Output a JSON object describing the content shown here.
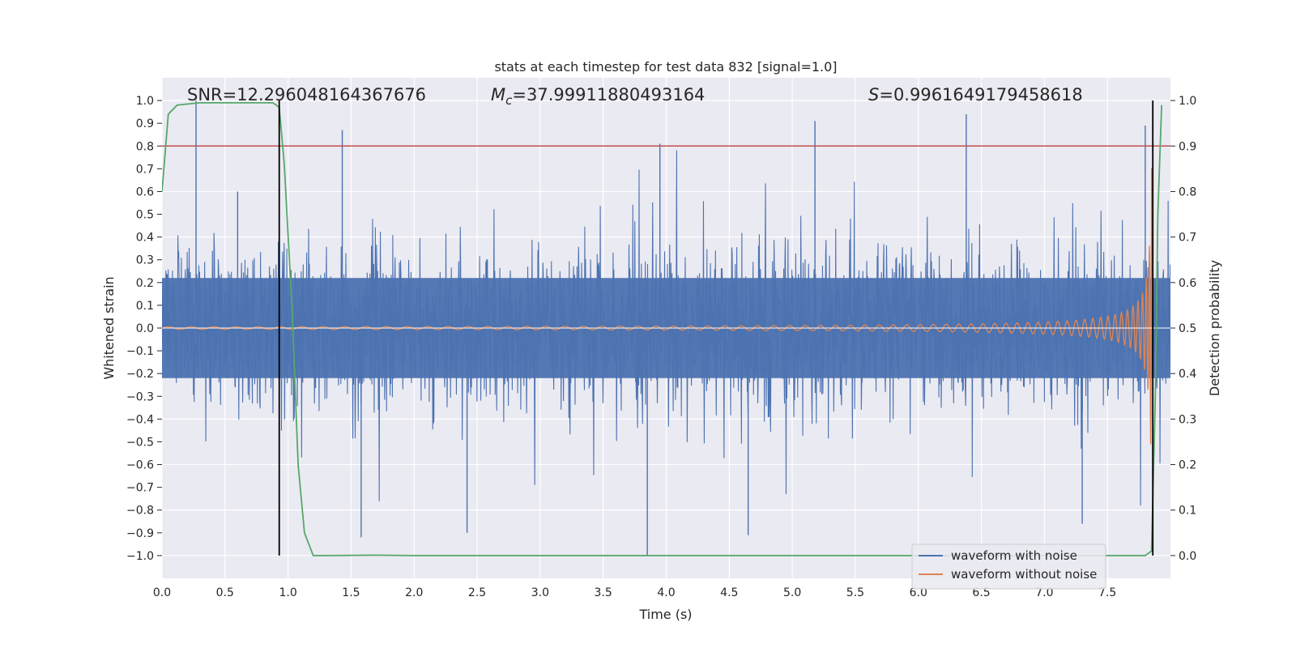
{
  "chart_data": {
    "type": "line",
    "title": "stats at each timestep for test data 832 [signal=1.0]",
    "xlabel": "Time (s)",
    "ylabel": "Whitened strain",
    "y2label": "Detection probability",
    "xlim": [
      0.0,
      8.0
    ],
    "ylim": [
      -1.1,
      1.1
    ],
    "y2lim": [
      -0.05,
      1.05
    ],
    "xticks": [
      "0.0",
      "0.5",
      "1.0",
      "1.5",
      "2.0",
      "2.5",
      "3.0",
      "3.5",
      "4.0",
      "4.5",
      "5.0",
      "5.5",
      "6.0",
      "6.5",
      "7.0",
      "7.5"
    ],
    "yticks": [
      "1.0",
      "0.9",
      "0.8",
      "0.7",
      "0.6",
      "0.5",
      "0.4",
      "0.3",
      "0.2",
      "0.1",
      "0.0",
      "−0.1",
      "−0.2",
      "−0.3",
      "−0.4",
      "−0.5",
      "−0.6",
      "−0.7",
      "−0.8",
      "−0.9",
      "−1.0"
    ],
    "y2ticks": [
      "1.0",
      "0.9",
      "0.8",
      "0.7",
      "0.6",
      "0.5",
      "0.4",
      "0.3",
      "0.2",
      "0.1",
      "0.0"
    ],
    "grid": true,
    "legend_position": "lower-right",
    "annotations": {
      "snr": "SNR=12.296048164367676",
      "mc_symbol": "M",
      "mc_sub": "c",
      "mc_value": "=37.99911880493164",
      "s_symbol": "S",
      "s_value": "=0.9961649179458618"
    },
    "threshold": 0.9,
    "vlines": [
      0.93,
      7.86
    ],
    "series": [
      {
        "name": "waveform with noise",
        "color": "#4c72b0",
        "axis": "left",
        "envelope": 0.4,
        "peaks": [
          [
            0.27,
            1.0
          ],
          [
            0.6,
            0.6
          ],
          [
            1.43,
            0.87
          ],
          [
            1.58,
            -0.92
          ],
          [
            2.42,
            -0.9
          ],
          [
            3.85,
            -1.0
          ],
          [
            3.95,
            0.81
          ],
          [
            4.65,
            -0.91
          ],
          [
            5.18,
            0.91
          ],
          [
            6.38,
            0.94
          ],
          [
            7.3,
            -0.86
          ],
          [
            7.8,
            0.89
          ]
        ]
      },
      {
        "name": "waveform without noise",
        "color": "#dd8452",
        "axis": "left",
        "chirp_start": 4.7,
        "merger": 7.86,
        "peak_amplitude": 0.73
      },
      {
        "name": "",
        "color": "#55a868",
        "axis": "right",
        "x": [
          0.0,
          0.05,
          0.12,
          0.3,
          0.6,
          0.88,
          0.93,
          0.97,
          1.03,
          1.08,
          1.13,
          1.2,
          1.3,
          1.7,
          2.0,
          4.0,
          6.0,
          7.8,
          7.85,
          7.88,
          7.9,
          7.93
        ],
        "y": [
          0.8,
          0.97,
          0.99,
          0.995,
          0.995,
          0.995,
          0.985,
          0.86,
          0.55,
          0.2,
          0.05,
          0.0,
          0.0,
          0.001,
          0.0,
          0.0,
          0.0,
          0.0,
          0.01,
          0.35,
          0.75,
          0.99
        ]
      },
      {
        "name": "",
        "color": "#c44e52",
        "axis": "right",
        "type": "hline",
        "value": 0.9
      }
    ]
  }
}
